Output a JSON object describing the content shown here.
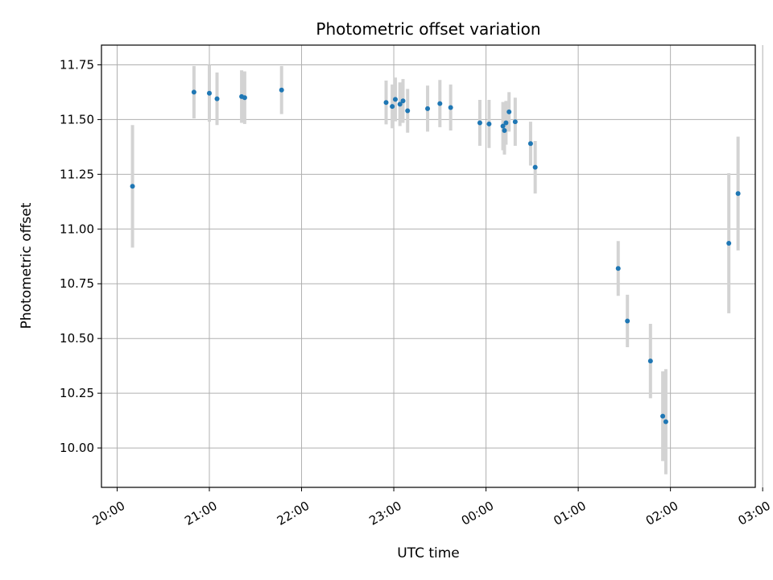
{
  "chart_data": {
    "type": "scatter",
    "title": "Photometric offset variation",
    "xlabel": "UTC time",
    "ylabel": "Photometric offset",
    "x_tick_labels": [
      "20:00",
      "21:00",
      "22:00",
      "23:00",
      "00:00",
      "01:00",
      "02:00",
      "03:00"
    ],
    "x_tick_hours": [
      0,
      1,
      2,
      3,
      4,
      5,
      6,
      7
    ],
    "y_ticks": [
      10.0,
      10.25,
      10.5,
      10.75,
      11.0,
      11.25,
      11.5,
      11.75
    ],
    "xlim_hours_from_2000": [
      -0.17,
      6.92
    ],
    "ylim": [
      9.82,
      11.84
    ],
    "grid": true,
    "point_color": "#1f77b4",
    "errorbar_color": "#d3d3d3",
    "points": [
      {
        "t": "20:10",
        "y": 11.195,
        "err": 0.28
      },
      {
        "t": "20:50",
        "y": 11.625,
        "err": 0.12
      },
      {
        "t": "21:00",
        "y": 11.62,
        "err": 0.13
      },
      {
        "t": "21:05",
        "y": 11.595,
        "err": 0.12
      },
      {
        "t": "21:21",
        "y": 11.605,
        "err": 0.12
      },
      {
        "t": "21:23",
        "y": 11.6,
        "err": 0.12
      },
      {
        "t": "21:47",
        "y": 11.635,
        "err": 0.11
      },
      {
        "t": "22:55",
        "y": 11.578,
        "err": 0.1
      },
      {
        "t": "22:59",
        "y": 11.56,
        "err": 0.1
      },
      {
        "t": "23:01",
        "y": 11.592,
        "err": 0.1
      },
      {
        "t": "23:04",
        "y": 11.57,
        "err": 0.1
      },
      {
        "t": "23:06",
        "y": 11.585,
        "err": 0.1
      },
      {
        "t": "23:09",
        "y": 11.54,
        "err": 0.1
      },
      {
        "t": "23:22",
        "y": 11.55,
        "err": 0.105
      },
      {
        "t": "23:30",
        "y": 11.573,
        "err": 0.108
      },
      {
        "t": "23:37",
        "y": 11.555,
        "err": 0.105
      },
      {
        "t": "23:56",
        "y": 11.485,
        "err": 0.105
      },
      {
        "t": "00:02",
        "y": 11.48,
        "err": 0.11
      },
      {
        "t": "00:11",
        "y": 11.47,
        "err": 0.11
      },
      {
        "t": "00:12",
        "y": 11.45,
        "err": 0.11
      },
      {
        "t": "00:13",
        "y": 11.485,
        "err": 0.1
      },
      {
        "t": "00:15",
        "y": 11.535,
        "err": 0.09
      },
      {
        "t": "00:19",
        "y": 11.49,
        "err": 0.11
      },
      {
        "t": "00:29",
        "y": 11.39,
        "err": 0.1
      },
      {
        "t": "00:32",
        "y": 11.282,
        "err": 0.12
      },
      {
        "t": "01:26",
        "y": 10.82,
        "err": 0.125
      },
      {
        "t": "01:32",
        "y": 10.58,
        "err": 0.12
      },
      {
        "t": "01:47",
        "y": 10.397,
        "err": 0.17
      },
      {
        "t": "01:55",
        "y": 10.145,
        "err": 0.205
      },
      {
        "t": "01:57",
        "y": 10.12,
        "err": 0.24
      },
      {
        "t": "02:38",
        "y": 10.935,
        "err": 0.32
      },
      {
        "t": "02:44",
        "y": 11.162,
        "err": 0.26
      }
    ]
  }
}
